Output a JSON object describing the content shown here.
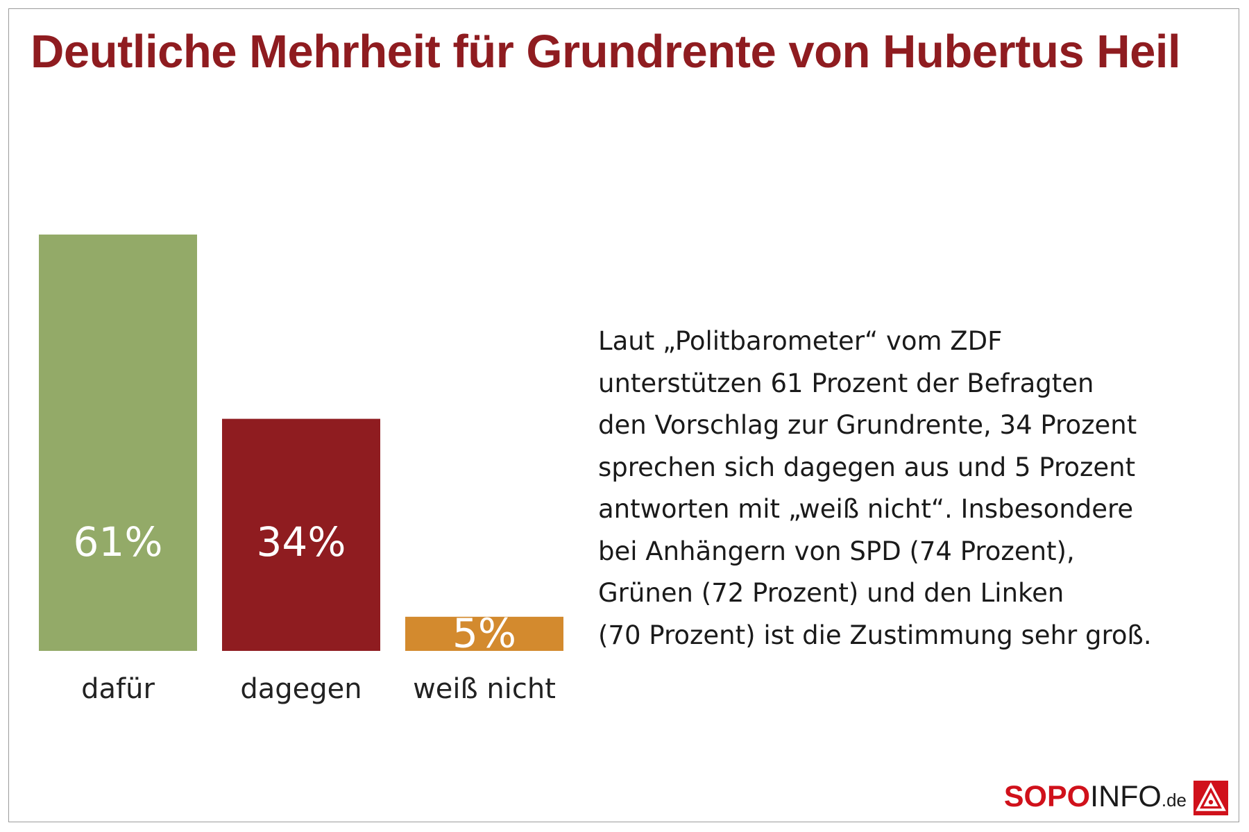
{
  "title": "Deutliche Mehrheit für Grundrente von Hubertus Heil",
  "chart_data": {
    "type": "bar",
    "title": "Deutliche Mehrheit für Grundrente von Hubertus Heil",
    "categories": [
      "dafür",
      "dagegen",
      "weiß nicht"
    ],
    "values": [
      61,
      34,
      5
    ],
    "value_labels": [
      "61%",
      "34%",
      "5%"
    ],
    "colors": [
      "#93aa68",
      "#8f1c20",
      "#d38a2e"
    ],
    "ylim": [
      0,
      61
    ],
    "grid": false,
    "xlabel": "",
    "ylabel": ""
  },
  "description_lines": [
    "Laut „Politbarometer“ vom ZDF",
    "unterstützen 61 Prozent der Befragten",
    "den Vorschlag zur Grundrente, 34 Prozent",
    "sprechen sich dagegen aus und 5 Prozent",
    "antworten mit „weiß nicht“. Insbesondere",
    "bei Anhängern von SPD (74 Prozent),",
    "Grünen (72 Prozent) und den Linken",
    "(70 Prozent) ist die Zustimmung sehr groß."
  ],
  "footer": {
    "brand_bold": "SOPO",
    "brand_regular": "INFO",
    "brand_suffix": ".de",
    "logo_icon": "ig-metall-logo-icon"
  }
}
